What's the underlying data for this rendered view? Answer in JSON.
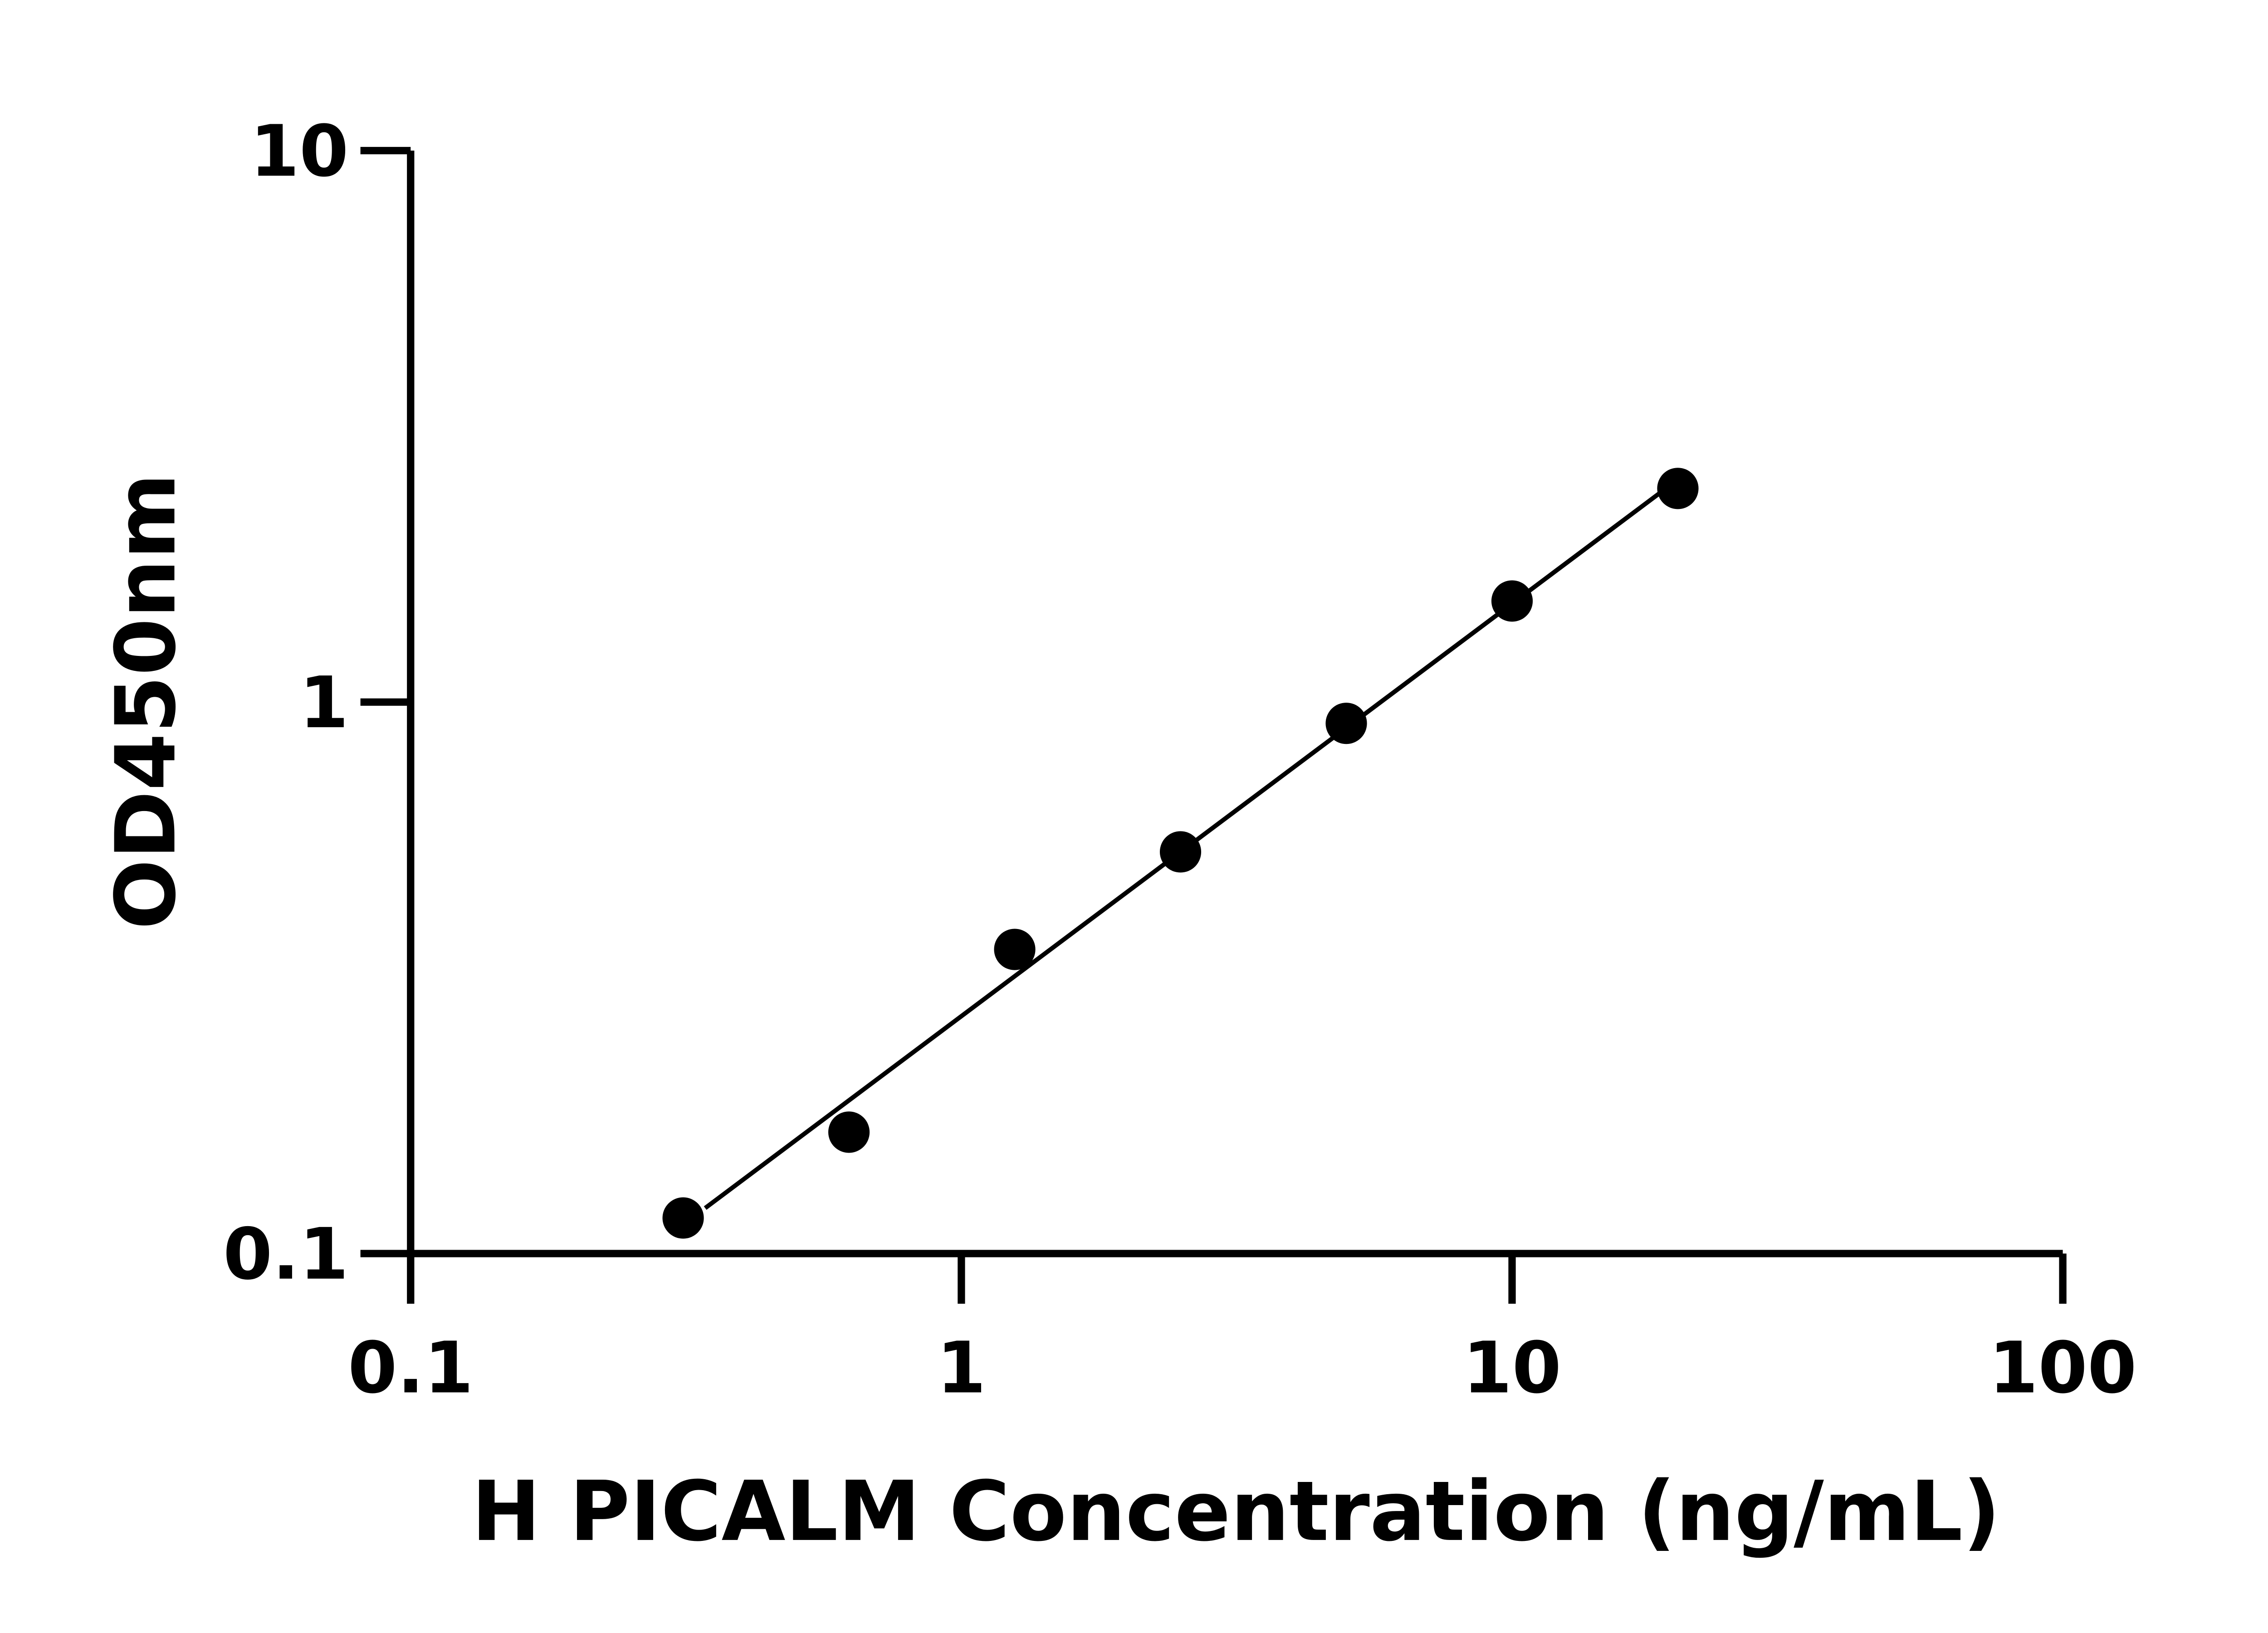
{
  "chart_data": {
    "type": "scatter",
    "title": "",
    "xlabel": "H PICALM Concentration (ng/mL)",
    "ylabel": "OD450nm",
    "x_scale": "log",
    "y_scale": "log",
    "xlim": [
      0.1,
      100
    ],
    "ylim": [
      0.1,
      10
    ],
    "x_ticks": [
      "0.1",
      "1",
      "10",
      "100"
    ],
    "y_ticks": [
      "0.1",
      "1",
      "10"
    ],
    "grid": false,
    "fit_line": "linear fit on log-log axes",
    "series": [
      {
        "x": [
          0.3125,
          0.625,
          1.25,
          2.5,
          5,
          10,
          20
        ],
        "y": [
          0.116,
          0.166,
          0.356,
          0.535,
          0.915,
          1.525,
          2.44
        ]
      }
    ],
    "colors": {
      "points": "#000000",
      "line": "#000000",
      "axes": "#000000"
    }
  }
}
